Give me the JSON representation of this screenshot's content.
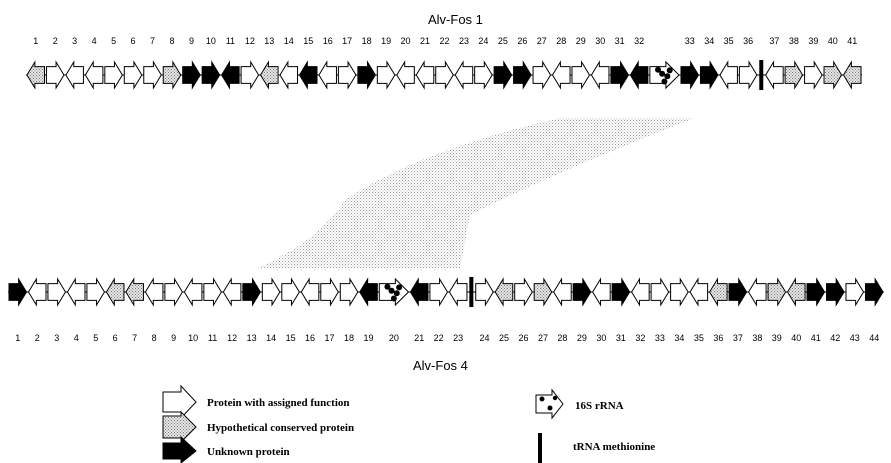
{
  "titles": {
    "top": "Alv-Fos 1",
    "bottom": "Alv-Fos 4"
  },
  "colors": {
    "assigned": "#ffffff",
    "hypothetical": "#c8c8c8",
    "unknown": "#000000",
    "trna": "#000000",
    "synteny": "#9a9a9a"
  },
  "top_genes": [
    {
      "label": "1",
      "dir": "left",
      "type": "hypothetical"
    },
    {
      "label": "2",
      "dir": "right",
      "type": "assigned"
    },
    {
      "label": "3",
      "dir": "left",
      "type": "assigned"
    },
    {
      "label": "4",
      "dir": "left",
      "type": "assigned"
    },
    {
      "label": "5",
      "dir": "right",
      "type": "assigned"
    },
    {
      "label": "6",
      "dir": "right",
      "type": "assigned"
    },
    {
      "label": "7",
      "dir": "right",
      "type": "assigned"
    },
    {
      "label": "8",
      "dir": "right",
      "type": "hypothetical"
    },
    {
      "label": "9",
      "dir": "right",
      "type": "unknown"
    },
    {
      "label": "10",
      "dir": "right",
      "type": "unknown"
    },
    {
      "label": "11",
      "dir": "left",
      "type": "unknown"
    },
    {
      "label": "12",
      "dir": "right",
      "type": "assigned"
    },
    {
      "label": "13",
      "dir": "left",
      "type": "hypothetical"
    },
    {
      "label": "14",
      "dir": "left",
      "type": "assigned"
    },
    {
      "label": "15",
      "dir": "left",
      "type": "unknown"
    },
    {
      "label": "16",
      "dir": "left",
      "type": "assigned"
    },
    {
      "label": "17",
      "dir": "right",
      "type": "assigned"
    },
    {
      "label": "18",
      "dir": "right",
      "type": "unknown"
    },
    {
      "label": "19",
      "dir": "right",
      "type": "assigned"
    },
    {
      "label": "20",
      "dir": "left",
      "type": "assigned"
    },
    {
      "label": "21",
      "dir": "left",
      "type": "assigned"
    },
    {
      "label": "22",
      "dir": "right",
      "type": "assigned"
    },
    {
      "label": "23",
      "dir": "left",
      "type": "assigned"
    },
    {
      "label": "24",
      "dir": "right",
      "type": "assigned"
    },
    {
      "label": "25",
      "dir": "right",
      "type": "unknown"
    },
    {
      "label": "26",
      "dir": "right",
      "type": "unknown"
    },
    {
      "label": "27",
      "dir": "right",
      "type": "assigned"
    },
    {
      "label": "28",
      "dir": "left",
      "type": "assigned"
    },
    {
      "label": "29",
      "dir": "right",
      "type": "assigned"
    },
    {
      "label": "30",
      "dir": "left",
      "type": "assigned"
    },
    {
      "label": "31",
      "dir": "right",
      "type": "unknown"
    },
    {
      "label": "32",
      "dir": "left",
      "type": "unknown"
    },
    {
      "label": "",
      "dir": "right",
      "type": "rrna"
    },
    {
      "label": "33",
      "dir": "right",
      "type": "unknown"
    },
    {
      "label": "34",
      "dir": "right",
      "type": "unknown"
    },
    {
      "label": "35",
      "dir": "left",
      "type": "assigned"
    },
    {
      "label": "36",
      "dir": "right",
      "type": "assigned"
    },
    {
      "label": "",
      "dir": "right",
      "type": "trna"
    },
    {
      "label": "37",
      "dir": "left",
      "type": "assigned"
    },
    {
      "label": "38",
      "dir": "right",
      "type": "hypothetical"
    },
    {
      "label": "39",
      "dir": "right",
      "type": "assigned"
    },
    {
      "label": "40",
      "dir": "right",
      "type": "hypothetical"
    },
    {
      "label": "41",
      "dir": "left",
      "type": "hypothetical"
    }
  ],
  "bottom_genes": [
    {
      "label": "1",
      "dir": "right",
      "type": "unknown"
    },
    {
      "label": "2",
      "dir": "left",
      "type": "assigned"
    },
    {
      "label": "3",
      "dir": "right",
      "type": "assigned"
    },
    {
      "label": "4",
      "dir": "left",
      "type": "assigned"
    },
    {
      "label": "5",
      "dir": "right",
      "type": "assigned"
    },
    {
      "label": "6",
      "dir": "left",
      "type": "hypothetical"
    },
    {
      "label": "7",
      "dir": "left",
      "type": "hypothetical"
    },
    {
      "label": "8",
      "dir": "left",
      "type": "assigned"
    },
    {
      "label": "9",
      "dir": "right",
      "type": "assigned"
    },
    {
      "label": "10",
      "dir": "left",
      "type": "assigned"
    },
    {
      "label": "11",
      "dir": "right",
      "type": "assigned"
    },
    {
      "label": "12",
      "dir": "left",
      "type": "assigned"
    },
    {
      "label": "13",
      "dir": "right",
      "type": "unknown"
    },
    {
      "label": "14",
      "dir": "right",
      "type": "assigned"
    },
    {
      "label": "15",
      "dir": "right",
      "type": "assigned"
    },
    {
      "label": "16",
      "dir": "left",
      "type": "assigned"
    },
    {
      "label": "17",
      "dir": "right",
      "type": "assigned"
    },
    {
      "label": "18",
      "dir": "right",
      "type": "assigned"
    },
    {
      "label": "19",
      "dir": "left",
      "type": "unknown"
    },
    {
      "label": "20",
      "dir": "right",
      "type": "rrna"
    },
    {
      "label": "21",
      "dir": "left",
      "type": "unknown"
    },
    {
      "label": "22",
      "dir": "right",
      "type": "assigned"
    },
    {
      "label": "23",
      "dir": "left",
      "type": "assigned"
    },
    {
      "label": "",
      "dir": "right",
      "type": "trna"
    },
    {
      "label": "24",
      "dir": "right",
      "type": "assigned"
    },
    {
      "label": "25",
      "dir": "left",
      "type": "hypothetical"
    },
    {
      "label": "26",
      "dir": "right",
      "type": "assigned"
    },
    {
      "label": "27",
      "dir": "right",
      "type": "hypothetical"
    },
    {
      "label": "28",
      "dir": "left",
      "type": "assigned"
    },
    {
      "label": "29",
      "dir": "right",
      "type": "unknown"
    },
    {
      "label": "30",
      "dir": "left",
      "type": "assigned"
    },
    {
      "label": "31",
      "dir": "right",
      "type": "unknown"
    },
    {
      "label": "32",
      "dir": "left",
      "type": "assigned"
    },
    {
      "label": "33",
      "dir": "right",
      "type": "assigned"
    },
    {
      "label": "34",
      "dir": "right",
      "type": "assigned"
    },
    {
      "label": "35",
      "dir": "left",
      "type": "assigned"
    },
    {
      "label": "36",
      "dir": "left",
      "type": "hypothetical"
    },
    {
      "label": "37",
      "dir": "right",
      "type": "unknown"
    },
    {
      "label": "38",
      "dir": "left",
      "type": "assigned"
    },
    {
      "label": "39",
      "dir": "right",
      "type": "hypothetical"
    },
    {
      "label": "40",
      "dir": "left",
      "type": "hypothetical"
    },
    {
      "label": "41",
      "dir": "right",
      "type": "unknown"
    },
    {
      "label": "42",
      "dir": "right",
      "type": "unknown"
    },
    {
      "label": "43",
      "dir": "right",
      "type": "assigned"
    },
    {
      "label": "44",
      "dir": "right",
      "type": "unknown"
    }
  ],
  "legend": [
    {
      "key": "assigned",
      "label": "Protein with assigned function"
    },
    {
      "key": "hypothetical",
      "label": "Hypothetical conserved protein"
    },
    {
      "key": "unknown",
      "label": "Unknown protein"
    },
    {
      "key": "rrna",
      "label": "16S rRNA"
    },
    {
      "key": "trna",
      "label": "tRNA methionine"
    }
  ]
}
